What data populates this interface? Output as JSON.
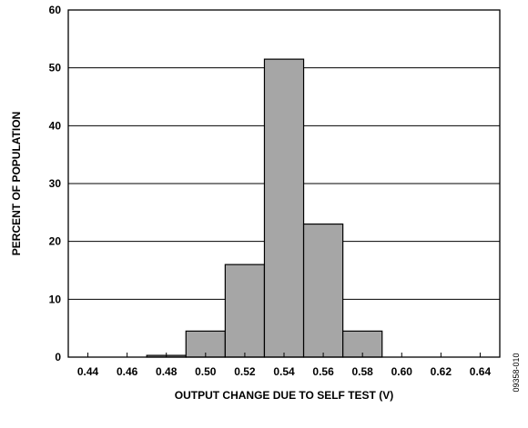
{
  "chart_data": {
    "type": "bar",
    "categories": [
      "0.44",
      "0.46",
      "0.48",
      "0.50",
      "0.52",
      "0.54",
      "0.56",
      "0.58",
      "0.60",
      "0.62",
      "0.64"
    ],
    "bins": [
      {
        "from": 0.47,
        "to": 0.49,
        "value": 0.3
      },
      {
        "from": 0.49,
        "to": 0.51,
        "value": 4.5
      },
      {
        "from": 0.51,
        "to": 0.53,
        "value": 16
      },
      {
        "from": 0.53,
        "to": 0.55,
        "value": 51.5
      },
      {
        "from": 0.55,
        "to": 0.57,
        "value": 23
      },
      {
        "from": 0.57,
        "to": 0.59,
        "value": 4.5
      }
    ],
    "xlim": [
      0.43,
      0.65
    ],
    "ylim": [
      0,
      60
    ],
    "yticks": [
      0,
      10,
      20,
      30,
      40,
      50,
      60
    ],
    "xlabel": "OUTPUT CHANGE DUE TO SELF TEST (V)",
    "ylabel": "PERCENT OF POPULATION",
    "grid": "horizontal",
    "bar_color": "#a6a6a6",
    "figure_id": "09358-010"
  }
}
